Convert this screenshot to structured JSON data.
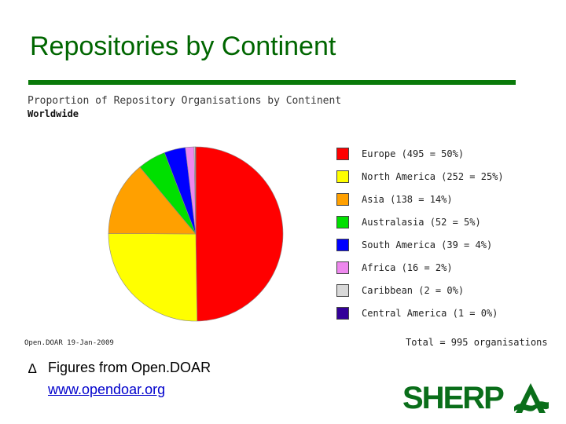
{
  "slide": {
    "title": "Repositories by Continent",
    "bullet_symbol": "∆",
    "bullet_text": "Figures from Open.DOAR",
    "bullet_link": "www.opendoar.org",
    "logo_text": "SHERP",
    "logo_mark_letter": "A"
  },
  "colors": {
    "title": "#006600",
    "rule": "#0a7a0a",
    "logo": "#0a6e1a",
    "link": "#0000cc"
  },
  "chart_data": {
    "type": "pie",
    "title": "Proportion of Repository Organisations by Continent",
    "subtitle": "Worldwide",
    "source": "Open.DOAR 19-Jan-2009",
    "total_label": "Total = 995 organisations",
    "slices": [
      {
        "name": "Europe",
        "value": 495,
        "label": "Europe (495 = 50%)",
        "color": "#ff0000"
      },
      {
        "name": "North America",
        "value": 252,
        "label": "North America (252 = 25%)",
        "color": "#ffff00"
      },
      {
        "name": "Asia",
        "value": 138,
        "label": "Asia (138 = 14%)",
        "color": "#ffa000"
      },
      {
        "name": "Australasia",
        "value": 52,
        "label": "Australasia (52 = 5%)",
        "color": "#00e000"
      },
      {
        "name": "South America",
        "value": 39,
        "label": "South America (39 = 4%)",
        "color": "#0000ff"
      },
      {
        "name": "Africa",
        "value": 16,
        "label": "Africa (16 = 2%)",
        "color": "#ee88ee"
      },
      {
        "name": "Caribbean",
        "value": 2,
        "label": "Caribbean (2 = 0%)",
        "color": "#d8d8d8"
      },
      {
        "name": "Central America",
        "value": 1,
        "label": "Central America (1 = 0%)",
        "color": "#330099"
      }
    ]
  }
}
